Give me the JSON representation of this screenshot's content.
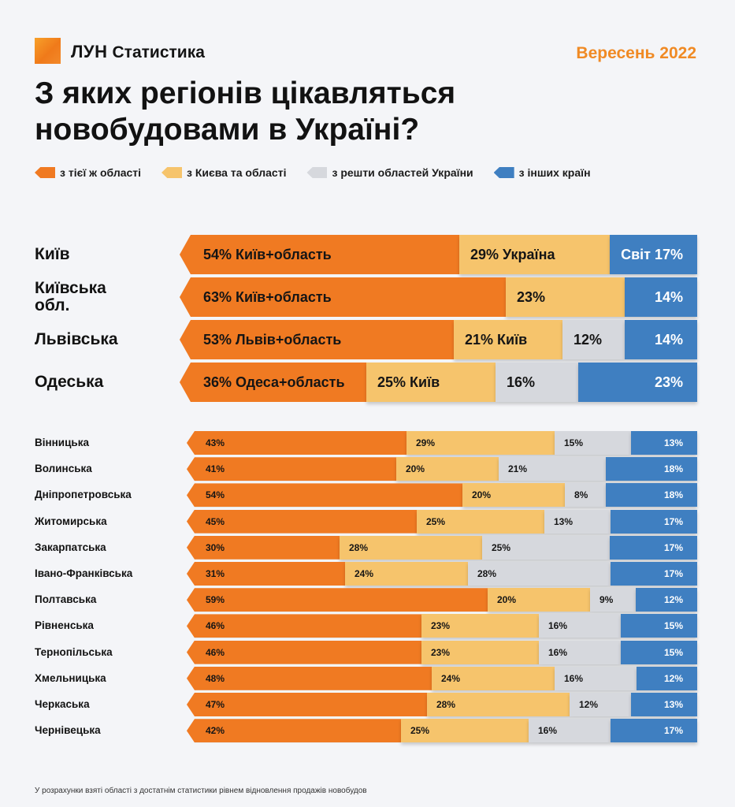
{
  "header": {
    "brand": "ЛУН",
    "brand_sub": "Статистика",
    "date": "Вересень 2022",
    "title_line1": "З яких регіонів цікавляться",
    "title_line2": "новобудовами в Україні?"
  },
  "colors": {
    "orange": "#f07a22",
    "yellow": "#f6c46c",
    "gray": "#d6d8dd",
    "blue": "#3f7fc1",
    "accent_date": "#f08a24"
  },
  "footnote": "У розрахунки взяті області з достатнім статистики рівнем відновлення продажів новобудов",
  "chart_data": {
    "type": "bar",
    "orientation": "horizontal",
    "stacked": true,
    "unit": "%",
    "legend": [
      "з тієї ж області",
      "з Києва та області",
      "з решти областей України",
      "з інших країн"
    ],
    "major_regions": [
      {
        "name": "Київ",
        "values": [
          54,
          29,
          0,
          17
        ],
        "labels": [
          "54% Київ+область",
          "29% Україна",
          "",
          "Світ 17%"
        ]
      },
      {
        "name": "Київська обл.",
        "values": [
          63,
          23,
          0,
          14
        ],
        "labels": [
          "63% Київ+область",
          "23%",
          "",
          "14%"
        ]
      },
      {
        "name": "Львівська",
        "values": [
          53,
          21,
          12,
          14
        ],
        "labels": [
          "53% Львів+область",
          "21% Київ",
          "12%",
          "14%"
        ]
      },
      {
        "name": "Одеська",
        "values": [
          36,
          25,
          16,
          23
        ],
        "labels": [
          "36% Одеса+область",
          "25% Київ",
          "16%",
          "23%"
        ]
      }
    ],
    "regions": [
      {
        "name": "Вінницька",
        "values": [
          43,
          29,
          15,
          13
        ]
      },
      {
        "name": "Волинська",
        "values": [
          41,
          20,
          21,
          18
        ]
      },
      {
        "name": "Дніпропетровська",
        "values": [
          54,
          20,
          8,
          18
        ]
      },
      {
        "name": "Житомирська",
        "values": [
          45,
          25,
          13,
          17
        ]
      },
      {
        "name": "Закарпатська",
        "values": [
          30,
          28,
          25,
          17
        ]
      },
      {
        "name": "Івано-Франківська",
        "values": [
          31,
          24,
          28,
          17
        ]
      },
      {
        "name": "Полтавська",
        "values": [
          59,
          20,
          9,
          12
        ]
      },
      {
        "name": "Рівненська",
        "values": [
          46,
          23,
          16,
          15
        ]
      },
      {
        "name": "Тернопільська",
        "values": [
          46,
          23,
          16,
          15
        ]
      },
      {
        "name": "Хмельницька",
        "values": [
          48,
          24,
          16,
          12
        ]
      },
      {
        "name": "Черкаська",
        "values": [
          47,
          28,
          12,
          13
        ]
      },
      {
        "name": "Чернівецька",
        "values": [
          42,
          25,
          16,
          17
        ]
      }
    ]
  }
}
